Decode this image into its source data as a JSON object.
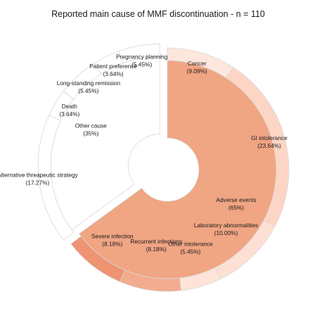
{
  "chart_data": {
    "type": "sunburst",
    "title": "Reported main cause of MMF discontinuation - n = 110",
    "inner": [
      {
        "name": "Adverse events",
        "pct_label": "(65%)",
        "value": 65,
        "color": "#f0a583",
        "exploded": false
      },
      {
        "name": "Other cause",
        "pct_label": "(35%)",
        "value": 35,
        "color": "#ffffff",
        "exploded": true
      }
    ],
    "outer": [
      {
        "name": "Cancer",
        "pct_label": "(9.09%)",
        "value": 9.09,
        "parent": "Adverse events",
        "color": "#fde6dc"
      },
      {
        "name": "GI intolerance",
        "pct_label": "(23.64%)",
        "value": 23.64,
        "parent": "Adverse events",
        "color": "#fdd5c5"
      },
      {
        "name": "Laboratory abnormalities",
        "pct_label": "(10.00%)",
        "value": 10.0,
        "parent": "Adverse events",
        "color": "#fde0d3"
      },
      {
        "name": "Other intolerance",
        "pct_label": "(5.45%)",
        "value": 5.45,
        "parent": "Adverse events",
        "color": "#fde3d8"
      },
      {
        "name": "Recurrent infections",
        "pct_label": "(8.18%)",
        "value": 8.18,
        "parent": "Adverse events",
        "color": "#f3ab8e"
      },
      {
        "name": "Severe infection",
        "pct_label": "(8.18%)",
        "value": 8.18,
        "parent": "Adverse events",
        "color": "#ee9473"
      },
      {
        "name": "Alternative threapeutic strategy",
        "pct_label": "(17.27%)",
        "value": 17.27,
        "parent": "Other cause",
        "color": "#ffffff"
      },
      {
        "name": "Death",
        "pct_label": "(3.64%)",
        "value": 3.64,
        "parent": "Other cause",
        "color": "#ffffff"
      },
      {
        "name": "Long-standing remission",
        "pct_label": "(5.45%)",
        "value": 5.45,
        "parent": "Other cause",
        "color": "#ffffff"
      },
      {
        "name": "Patient preference",
        "pct_label": "(3.64%)",
        "value": 3.64,
        "parent": "Other cause",
        "color": "#ffffff"
      },
      {
        "name": "Pregnancy planning",
        "pct_label": "(5.45%)",
        "value": 5.45,
        "parent": "Other cause",
        "color": "#ffffff"
      }
    ],
    "stroke_color": "#d9d9d9"
  }
}
